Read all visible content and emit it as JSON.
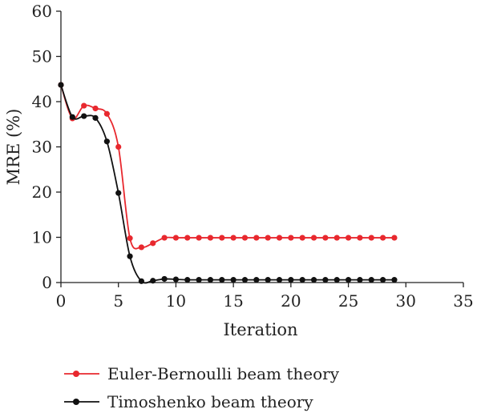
{
  "chart_data": {
    "type": "line",
    "title": "",
    "xlabel": "Iteration",
    "ylabel": "MRE (%)",
    "xlim": [
      0,
      35
    ],
    "ylim": [
      0,
      60
    ],
    "xticks": [
      0,
      5,
      10,
      15,
      20,
      25,
      30,
      35
    ],
    "yticks": [
      0,
      10,
      20,
      30,
      40,
      50,
      60
    ],
    "x_tick_labels": [
      "0",
      "5",
      "10",
      "15",
      "20",
      "25",
      "30",
      "35"
    ],
    "y_tick_labels": [
      "0",
      "10",
      "20",
      "30",
      "40",
      "50",
      "60"
    ],
    "grid": false,
    "legend_position": "bottom-left",
    "x": [
      0,
      1,
      2,
      3,
      4,
      5,
      6,
      7,
      8,
      9,
      10,
      11,
      12,
      13,
      14,
      15,
      16,
      17,
      18,
      19,
      20,
      21,
      22,
      23,
      24,
      25,
      26,
      27,
      28,
      29
    ],
    "series": [
      {
        "name": "Euler-Bernoulli beam theory",
        "color": "#e8282e",
        "values": [
          43.7,
          36.3,
          39.1,
          38.5,
          37.3,
          30.0,
          9.8,
          7.8,
          8.7,
          9.9,
          9.9,
          9.9,
          9.9,
          9.9,
          9.9,
          9.9,
          9.9,
          9.9,
          9.9,
          9.9,
          9.9,
          9.9,
          9.9,
          9.9,
          9.9,
          9.9,
          9.9,
          9.9,
          9.9,
          9.9
        ]
      },
      {
        "name": "Timoshenko beam theory",
        "color": "#111111",
        "values": [
          43.7,
          36.6,
          36.8,
          36.4,
          31.2,
          19.8,
          5.8,
          0.3,
          0.4,
          0.8,
          0.7,
          0.6,
          0.6,
          0.6,
          0.6,
          0.6,
          0.6,
          0.6,
          0.6,
          0.6,
          0.6,
          0.6,
          0.6,
          0.6,
          0.6,
          0.6,
          0.6,
          0.6,
          0.6,
          0.6
        ]
      }
    ]
  }
}
